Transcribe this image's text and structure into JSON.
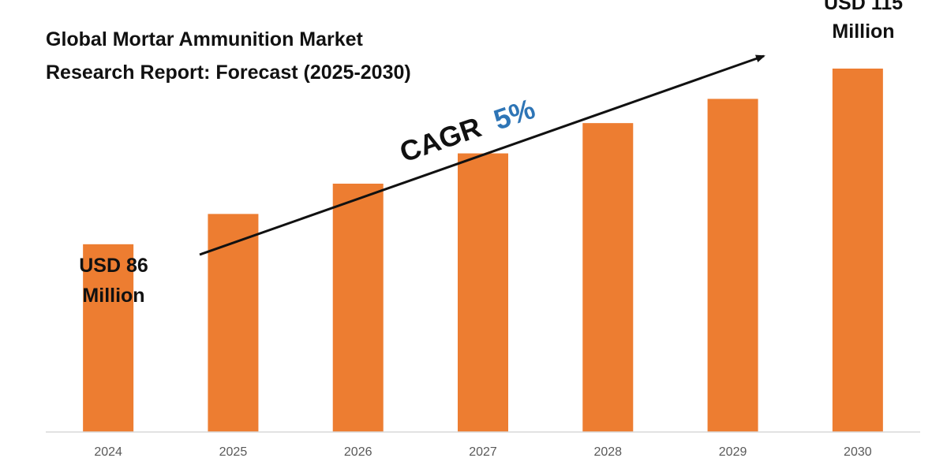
{
  "chart_data": {
    "type": "bar",
    "title_lines": [
      "Global Mortar Ammunition Market",
      "Research Report: Forecast (2025-2030)"
    ],
    "categories": [
      "2024",
      "2025",
      "2026",
      "2027",
      "2028",
      "2029",
      "2030"
    ],
    "values": [
      86,
      91,
      96,
      101,
      106,
      110,
      115
    ],
    "start_label": [
      "USD 86",
      "Million"
    ],
    "end_label": [
      "USD 115",
      "Million"
    ],
    "cagr_prefix": "CAGR",
    "cagr_value": "5%",
    "ylim": [
      0,
      115
    ],
    "grid": false,
    "axis_values_shown": false
  },
  "colors": {
    "bar": "#ED7D31",
    "cagr_accent": "#2E75B6",
    "text": "#111111",
    "tick_text": "#595959",
    "axis_line": "#D9D9D9"
  }
}
